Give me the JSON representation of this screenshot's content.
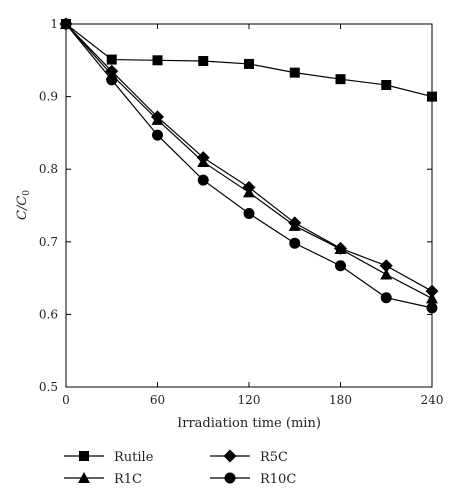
{
  "chart_data": {
    "type": "line",
    "xlabel": "Irradiation time (min)",
    "ylabel": "C/C",
    "ylabel_subscript": "0",
    "xlim": [
      0,
      240
    ],
    "ylim": [
      0.5,
      1.0
    ],
    "xticks": [
      0,
      60,
      120,
      180,
      240
    ],
    "yticks": [
      0.5,
      0.6,
      0.7,
      0.8,
      0.9,
      1.0
    ],
    "xtick_labels": [
      "0",
      "60",
      "120",
      "180",
      "240"
    ],
    "ytick_labels": [
      "0.5",
      "0.6",
      "0.7",
      "0.8",
      "0.9",
      "1"
    ],
    "grid": false,
    "legend_position": "bottom",
    "series": [
      {
        "name": "Rutile",
        "marker": "square",
        "x": [
          0,
          30,
          60,
          90,
          120,
          150,
          180,
          210,
          240
        ],
        "y": [
          1.0,
          0.951,
          0.95,
          0.949,
          0.945,
          0.933,
          0.924,
          0.916,
          0.9
        ]
      },
      {
        "name": "R1C",
        "marker": "triangle",
        "x": [
          0,
          30,
          60,
          90,
          120,
          150,
          180,
          210,
          240
        ],
        "y": [
          1.0,
          0.93,
          0.868,
          0.81,
          0.768,
          0.722,
          0.69,
          0.655,
          0.622
        ]
      },
      {
        "name": "R5C",
        "marker": "diamond",
        "x": [
          0,
          30,
          60,
          90,
          120,
          150,
          180,
          210,
          240
        ],
        "y": [
          1.0,
          0.935,
          0.872,
          0.816,
          0.775,
          0.726,
          0.691,
          0.667,
          0.632
        ]
      },
      {
        "name": "R10C",
        "marker": "circle",
        "x": [
          0,
          30,
          60,
          90,
          120,
          150,
          180,
          210,
          240
        ],
        "y": [
          1.0,
          0.923,
          0.847,
          0.785,
          0.739,
          0.698,
          0.667,
          0.623,
          0.609
        ]
      }
    ],
    "color": "#000000"
  }
}
